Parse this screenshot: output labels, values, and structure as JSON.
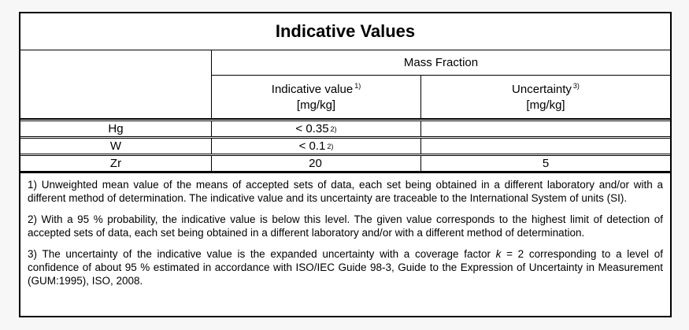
{
  "page": {
    "background_color": "#f7f7f7",
    "panel_background": "#ffffff",
    "border_color": "#000000"
  },
  "table": {
    "title": "Indicative Values",
    "group_header": "Mass Fraction",
    "column_headers": {
      "indicative": {
        "label": "Indicative value",
        "footnote_ref": "1)",
        "unit": "[mg/kg]"
      },
      "uncertainty": {
        "label": "Uncertainty",
        "footnote_ref": "3)",
        "unit": "[mg/kg]"
      }
    },
    "rows": [
      {
        "element": "Hg",
        "indicative_value": "< 0.35",
        "indicative_footnote_ref": "2)",
        "uncertainty": ""
      },
      {
        "element": "W",
        "indicative_value": "< 0.1",
        "indicative_footnote_ref": "2)",
        "uncertainty": ""
      },
      {
        "element": "Zr",
        "indicative_value": "20",
        "indicative_footnote_ref": "",
        "uncertainty": "5"
      }
    ]
  },
  "footnotes": {
    "note1": "1) Unweighted mean value of the means of accepted sets of data, each set being obtained in a different laboratory and/or with a different method of determination. The indicative value and its uncertainty are traceable to the International System of units (SI).",
    "note2": "2) With a 95 % probability, the indicative value is below this level. The given value corresponds to the highest limit of detection of accepted sets of data, each set being obtained in a different laboratory and/or with a different method of determination.",
    "note3_before_k": "3) The uncertainty of the indicative value is the expanded uncertainty with a coverage factor ",
    "note3_k": "k",
    "note3_after_k": " = 2 corresponding to a level of confidence of about 95 % estimated in accordance with ISO/IEC Guide 98-3, Guide to the Expression of Uncertainty in Measurement (GUM:1995), ISO, 2008."
  }
}
